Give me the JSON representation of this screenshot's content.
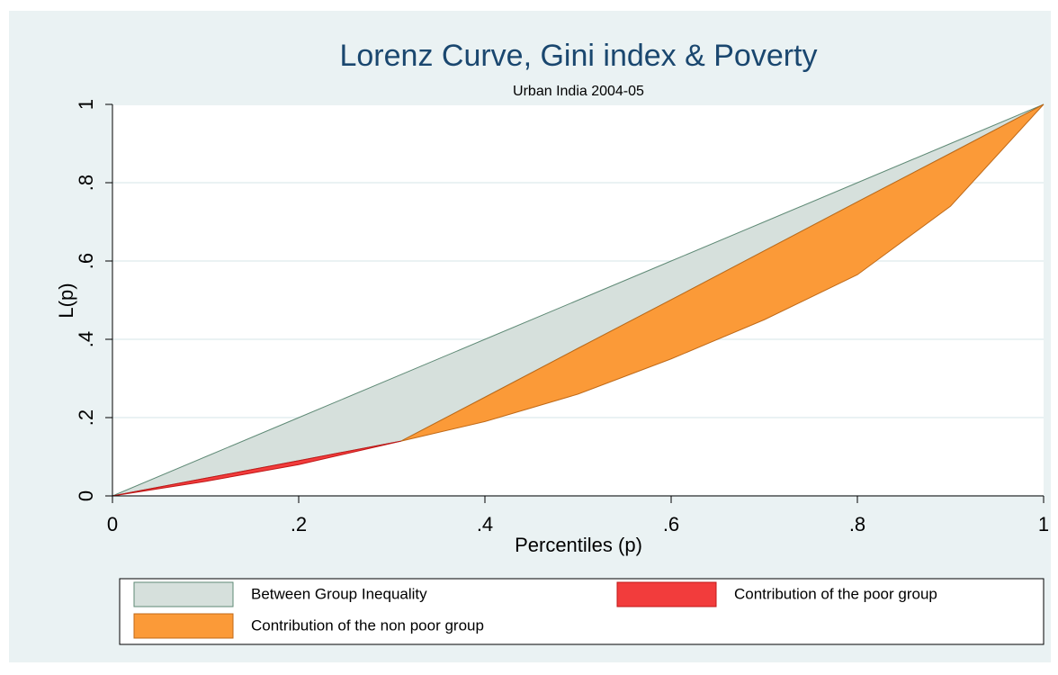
{
  "chart_data": {
    "type": "area",
    "title": "Lorenz Curve, Gini index & Poverty",
    "subtitle": "Urban India 2004-05",
    "x_label": "Percentiles (p)",
    "y_label": "L(p)",
    "xlim": [
      0,
      1
    ],
    "ylim": [
      0,
      1
    ],
    "xticks": [
      0,
      {
        "value": 0.2,
        "label": ".2"
      },
      {
        "value": 0.4,
        "label": ".4"
      },
      {
        "value": 0.6,
        "label": ".6"
      },
      {
        "value": 0.8,
        "label": ".8"
      },
      1
    ],
    "yticks": [
      0,
      {
        "value": 0.2,
        "label": ".2"
      },
      {
        "value": 0.4,
        "label": ".4"
      },
      {
        "value": 0.6,
        "label": ".6"
      },
      {
        "value": 0.8,
        "label": ".8"
      },
      1
    ],
    "grid": true,
    "legend": "bottom",
    "series": [
      {
        "name": "Between Group Inequality",
        "color": "#d6e0dc",
        "stroke": "#5f8a76",
        "x": [
          0,
          0.1,
          0.2,
          0.31,
          0.4,
          0.5,
          0.6,
          0.7,
          0.8,
          0.9,
          1
        ],
        "upper": [
          0,
          0.1,
          0.2,
          0.31,
          0.4,
          0.5,
          0.6,
          0.7,
          0.8,
          0.9,
          1
        ],
        "lower": [
          0,
          0.045,
          0.09,
          0.14,
          0.252,
          0.377,
          0.501,
          0.626,
          0.751,
          0.875,
          1
        ]
      },
      {
        "name": "Contribution of the poor group",
        "color": "#f23c3c",
        "stroke": "#c01818",
        "x": [
          0,
          0.1,
          0.2,
          0.31
        ],
        "upper": [
          0,
          0.045,
          0.09,
          0.14
        ],
        "lower": [
          0,
          0.037,
          0.08,
          0.14
        ]
      },
      {
        "name": "Contribution of the non poor group",
        "color": "#fb9a38",
        "stroke": "#c06a18",
        "x": [
          0.31,
          0.4,
          0.5,
          0.6,
          0.7,
          0.8,
          0.9,
          1
        ],
        "upper": [
          0.14,
          0.252,
          0.377,
          0.501,
          0.626,
          0.751,
          0.875,
          1
        ],
        "lower": [
          0.14,
          0.19,
          0.26,
          0.35,
          0.45,
          0.565,
          0.74,
          1
        ]
      }
    ]
  }
}
